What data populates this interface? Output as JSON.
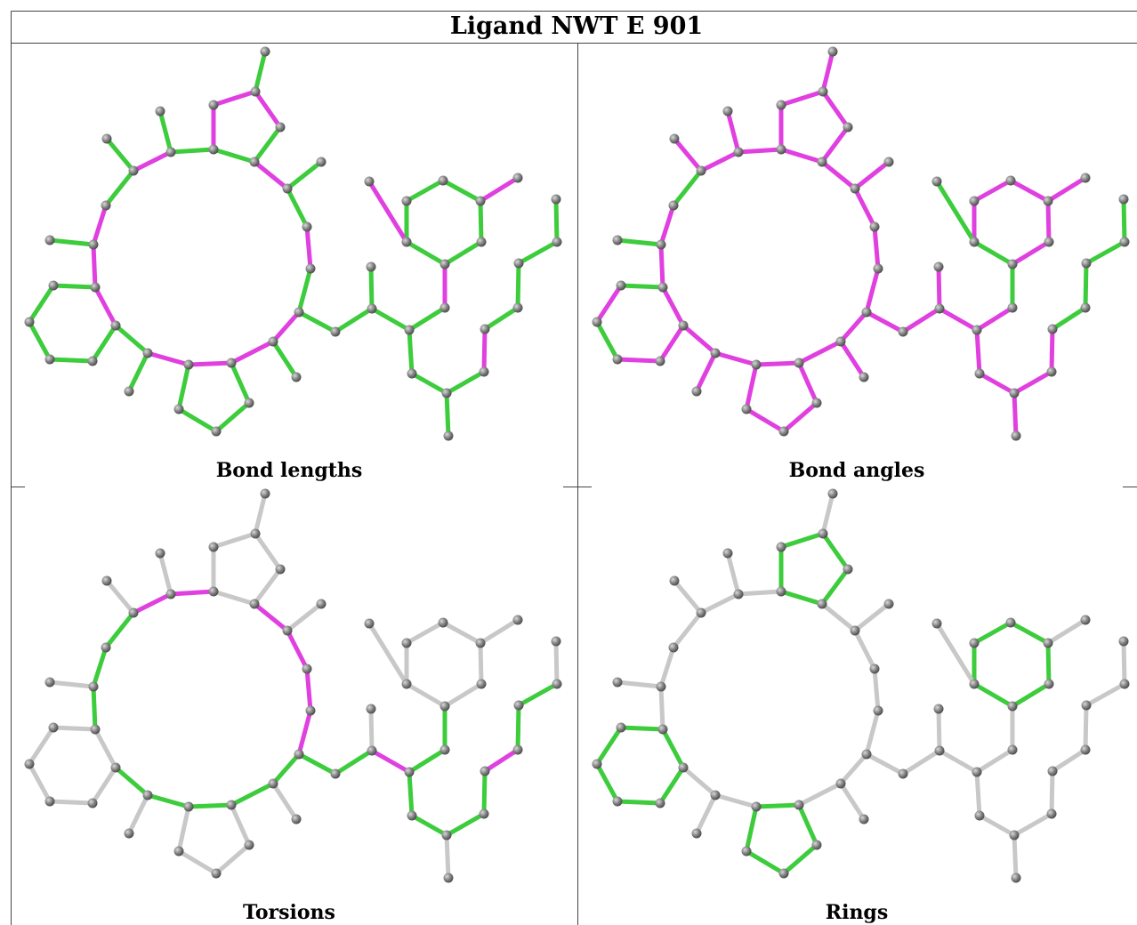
{
  "title": "Ligand NWT E 901",
  "panels": [
    {
      "caption": "Bond lengths"
    },
    {
      "caption": "Bond angles"
    },
    {
      "caption": "Torsions"
    },
    {
      "caption": "Rings"
    }
  ]
}
